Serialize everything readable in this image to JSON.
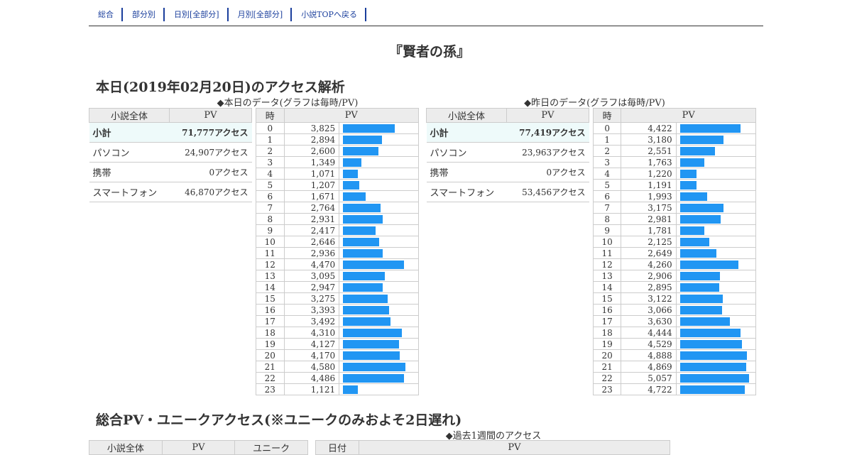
{
  "nav": [
    "総合",
    "部分別",
    "日別[全部分]",
    "月別[全部分]",
    "小説TOPへ戻る"
  ],
  "title": "『賢者の孫』",
  "today_heading": "本日(2019年02月20日)のアクセス解析",
  "today_caption": "◆本日のデータ(グラフは毎時/PV)",
  "yesterday_caption": "◆昨日のデータ(グラフは毎時/PV)",
  "summary_headers": {
    "col1": "小説全体",
    "col2": "PV"
  },
  "hourly_headers": {
    "col1": "時",
    "col2": "PV"
  },
  "today_summary": [
    {
      "label": "小計",
      "value": "71,777アクセス"
    },
    {
      "label": "パソコン",
      "value": "24,907アクセス"
    },
    {
      "label": "携帯",
      "value": "0アクセス"
    },
    {
      "label": "スマートフォン",
      "value": "46,870アクセス"
    }
  ],
  "yesterday_summary": [
    {
      "label": "小計",
      "value": "77,419アクセス"
    },
    {
      "label": "パソコン",
      "value": "23,963アクセス"
    },
    {
      "label": "携帯",
      "value": "0アクセス"
    },
    {
      "label": "スマートフォン",
      "value": "53,456アクセス"
    }
  ],
  "today_hourly": [
    {
      "hour": "0",
      "pv": "3,825",
      "value": 3825
    },
    {
      "hour": "1",
      "pv": "2,894",
      "value": 2894
    },
    {
      "hour": "2",
      "pv": "2,600",
      "value": 2600
    },
    {
      "hour": "3",
      "pv": "1,349",
      "value": 1349
    },
    {
      "hour": "4",
      "pv": "1,071",
      "value": 1071
    },
    {
      "hour": "5",
      "pv": "1,207",
      "value": 1207
    },
    {
      "hour": "6",
      "pv": "1,671",
      "value": 1671
    },
    {
      "hour": "7",
      "pv": "2,764",
      "value": 2764
    },
    {
      "hour": "8",
      "pv": "2,931",
      "value": 2931
    },
    {
      "hour": "9",
      "pv": "2,417",
      "value": 2417
    },
    {
      "hour": "10",
      "pv": "2,646",
      "value": 2646
    },
    {
      "hour": "11",
      "pv": "2,936",
      "value": 2936
    },
    {
      "hour": "12",
      "pv": "4,470",
      "value": 4470
    },
    {
      "hour": "13",
      "pv": "3,095",
      "value": 3095
    },
    {
      "hour": "14",
      "pv": "2,947",
      "value": 2947
    },
    {
      "hour": "15",
      "pv": "3,275",
      "value": 3275
    },
    {
      "hour": "16",
      "pv": "3,393",
      "value": 3393
    },
    {
      "hour": "17",
      "pv": "3,492",
      "value": 3492
    },
    {
      "hour": "18",
      "pv": "4,310",
      "value": 4310
    },
    {
      "hour": "19",
      "pv": "4,127",
      "value": 4127
    },
    {
      "hour": "20",
      "pv": "4,170",
      "value": 4170
    },
    {
      "hour": "21",
      "pv": "4,580",
      "value": 4580
    },
    {
      "hour": "22",
      "pv": "4,486",
      "value": 4486
    },
    {
      "hour": "23",
      "pv": "1,121",
      "value": 1121
    }
  ],
  "yesterday_hourly": [
    {
      "hour": "0",
      "pv": "4,422",
      "value": 4422
    },
    {
      "hour": "1",
      "pv": "3,180",
      "value": 3180
    },
    {
      "hour": "2",
      "pv": "2,551",
      "value": 2551
    },
    {
      "hour": "3",
      "pv": "1,763",
      "value": 1763
    },
    {
      "hour": "4",
      "pv": "1,220",
      "value": 1220
    },
    {
      "hour": "5",
      "pv": "1,191",
      "value": 1191
    },
    {
      "hour": "6",
      "pv": "1,993",
      "value": 1993
    },
    {
      "hour": "7",
      "pv": "3,175",
      "value": 3175
    },
    {
      "hour": "8",
      "pv": "2,981",
      "value": 2981
    },
    {
      "hour": "9",
      "pv": "1,781",
      "value": 1781
    },
    {
      "hour": "10",
      "pv": "2,125",
      "value": 2125
    },
    {
      "hour": "11",
      "pv": "2,649",
      "value": 2649
    },
    {
      "hour": "12",
      "pv": "4,260",
      "value": 4260
    },
    {
      "hour": "13",
      "pv": "2,906",
      "value": 2906
    },
    {
      "hour": "14",
      "pv": "2,895",
      "value": 2895
    },
    {
      "hour": "15",
      "pv": "3,122",
      "value": 3122
    },
    {
      "hour": "16",
      "pv": "3,066",
      "value": 3066
    },
    {
      "hour": "17",
      "pv": "3,630",
      "value": 3630
    },
    {
      "hour": "18",
      "pv": "4,444",
      "value": 4444
    },
    {
      "hour": "19",
      "pv": "4,529",
      "value": 4529
    },
    {
      "hour": "20",
      "pv": "4,888",
      "value": 4888
    },
    {
      "hour": "21",
      "pv": "4,869",
      "value": 4869
    },
    {
      "hour": "22",
      "pv": "5,057",
      "value": 5057
    },
    {
      "hour": "23",
      "pv": "4,722",
      "value": 4722
    }
  ],
  "bar_max": 5060,
  "bar_color": "#2196f3",
  "total_heading": "総合PV・ユニークアクセス(※ユニークのみおよそ2日遅れ)",
  "week_caption": "◆過去1週間のアクセス",
  "bottom_left_headers": {
    "col1": "小説全体",
    "col2": "PV",
    "col3": "ユニーク"
  },
  "bottom_right_headers": {
    "col1": "日付",
    "col2": "PV"
  }
}
